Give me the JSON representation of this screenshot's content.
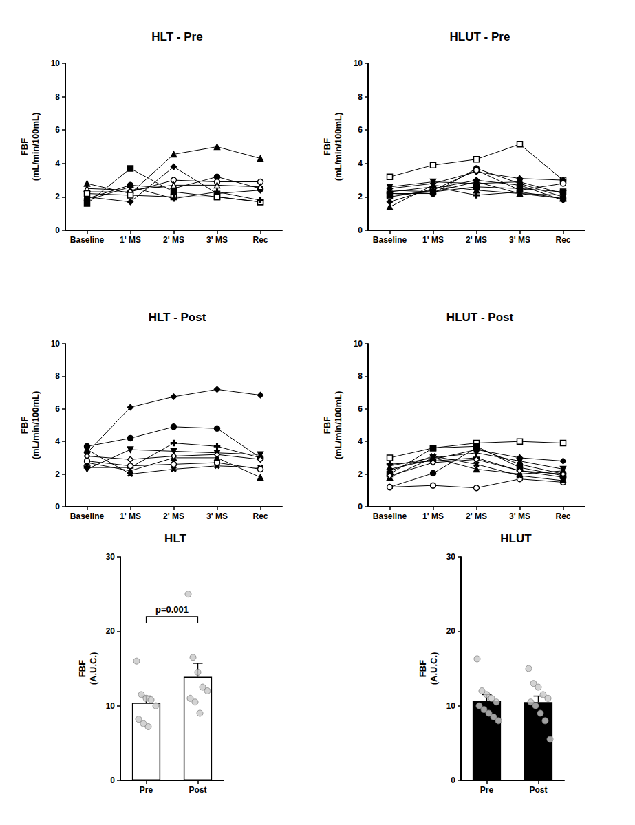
{
  "chart_data": [
    {
      "type": "line",
      "title": "HLT - Pre",
      "y_label": "FBF\n(mL/min/100mL)",
      "categories": [
        "Baseline",
        "1' MS",
        "2' MS",
        "3' MS",
        "Rec"
      ],
      "ylim": [
        0,
        10
      ],
      "yticks": [
        0,
        2,
        4,
        6,
        8,
        10
      ],
      "grid": false,
      "series": [
        {
          "color": "#000000",
          "marker": "triangle",
          "values": [
            2.8,
            2.2,
            4.55,
            5.0,
            4.3
          ]
        },
        {
          "color": "#000000",
          "marker": "square",
          "values": [
            1.6,
            3.7,
            2.3,
            2.0,
            1.7
          ]
        },
        {
          "color": "#000000",
          "marker": "circle",
          "values": [
            1.9,
            2.7,
            2.5,
            3.2,
            2.5
          ]
        },
        {
          "color": "#000000",
          "marker": "diamond",
          "values": [
            2.0,
            1.7,
            3.8,
            2.2,
            2.4
          ]
        },
        {
          "color": "#000000",
          "marker": "open_circle",
          "values": [
            2.3,
            2.3,
            3.0,
            2.9,
            2.9
          ]
        },
        {
          "color": "#000000",
          "marker": "open_triangle",
          "values": [
            2.5,
            2.4,
            2.7,
            2.7,
            2.6
          ]
        },
        {
          "color": "#000000",
          "marker": "open_square",
          "values": [
            2.2,
            2.1,
            2.0,
            2.0,
            1.7
          ]
        },
        {
          "color": "#000000",
          "marker": "plus",
          "values": [
            1.8,
            2.6,
            1.9,
            2.3,
            1.8
          ]
        }
      ]
    },
    {
      "type": "line",
      "title": "HLUT - Pre",
      "y_label": "FBF\n(mL/min/100mL)",
      "categories": [
        "Baseline",
        "1' MS",
        "2' MS",
        "3' MS",
        "Rec"
      ],
      "ylim": [
        0,
        10
      ],
      "yticks": [
        0,
        2,
        4,
        6,
        8,
        10
      ],
      "grid": false,
      "series": [
        {
          "color": "#000000",
          "marker": "open_square",
          "values": [
            3.2,
            3.9,
            4.25,
            5.15,
            3.0
          ]
        },
        {
          "color": "#000000",
          "marker": "diamond",
          "values": [
            2.5,
            2.8,
            3.5,
            3.1,
            3.0
          ]
        },
        {
          "color": "#000000",
          "marker": "circle",
          "values": [
            2.2,
            2.2,
            3.7,
            2.8,
            2.0
          ]
        },
        {
          "color": "#000000",
          "marker": "triangle_down",
          "values": [
            2.6,
            2.9,
            2.8,
            2.9,
            2.2
          ]
        },
        {
          "color": "#000000",
          "marker": "triangle",
          "values": [
            1.4,
            2.7,
            2.4,
            2.2,
            1.9
          ]
        },
        {
          "color": "#000000",
          "marker": "diamond",
          "values": [
            1.7,
            2.5,
            3.0,
            2.7,
            1.8
          ]
        },
        {
          "color": "#000000",
          "marker": "open_circle",
          "values": [
            2.0,
            2.4,
            3.6,
            2.4,
            2.8
          ]
        },
        {
          "color": "#000000",
          "marker": "plus",
          "values": [
            2.3,
            2.6,
            2.1,
            2.3,
            1.9
          ]
        },
        {
          "color": "#000000",
          "marker": "square",
          "values": [
            2.1,
            2.3,
            2.6,
            2.5,
            2.3
          ]
        },
        {
          "color": "#000000",
          "marker": "x",
          "values": [
            2.4,
            2.3,
            2.9,
            2.2,
            2.1
          ]
        }
      ]
    },
    {
      "type": "line",
      "title": "HLT - Post",
      "y_label": "FBF\n(mL/min/100mL)",
      "categories": [
        "Baseline",
        "1' MS",
        "2' MS",
        "3' MS",
        "Rec"
      ],
      "ylim": [
        0,
        10
      ],
      "yticks": [
        0,
        2,
        4,
        6,
        8,
        10
      ],
      "grid": false,
      "series": [
        {
          "color": "#000000",
          "marker": "diamond",
          "values": [
            3.3,
            6.1,
            6.75,
            7.2,
            6.85
          ]
        },
        {
          "color": "#000000",
          "marker": "circle",
          "values": [
            3.7,
            4.2,
            4.9,
            4.8,
            3.0
          ]
        },
        {
          "color": "#000000",
          "marker": "triangle_down",
          "values": [
            2.3,
            3.5,
            3.4,
            3.3,
            3.2
          ]
        },
        {
          "color": "#000000",
          "marker": "plus",
          "values": [
            2.4,
            2.4,
            3.9,
            3.7,
            3.0
          ]
        },
        {
          "color": "#000000",
          "marker": "triangle",
          "values": [
            2.7,
            2.2,
            3.0,
            3.0,
            1.8
          ]
        },
        {
          "color": "#000000",
          "marker": "x",
          "values": [
            3.5,
            2.0,
            2.3,
            2.5,
            2.4
          ]
        },
        {
          "color": "#000000",
          "marker": "open_circle",
          "values": [
            2.8,
            2.5,
            2.6,
            2.7,
            2.3
          ]
        },
        {
          "color": "#000000",
          "marker": "open_diamond",
          "values": [
            3.1,
            2.9,
            3.1,
            3.2,
            2.9
          ]
        }
      ]
    },
    {
      "type": "line",
      "title": "HLUT - Post",
      "y_label": "FBF\n(mL/min/100mL)",
      "categories": [
        "Baseline",
        "1' MS",
        "2' MS",
        "3' MS",
        "Rec"
      ],
      "ylim": [
        0,
        10
      ],
      "yticks": [
        0,
        2,
        4,
        6,
        8,
        10
      ],
      "grid": false,
      "series": [
        {
          "color": "#000000",
          "marker": "open_square",
          "values": [
            3.0,
            3.6,
            3.9,
            4.0,
            3.9
          ]
        },
        {
          "color": "#000000",
          "marker": "diamond",
          "values": [
            2.3,
            2.9,
            3.5,
            3.0,
            2.8
          ]
        },
        {
          "color": "#000000",
          "marker": "circle",
          "values": [
            1.2,
            2.05,
            3.6,
            2.6,
            2.0
          ]
        },
        {
          "color": "#000000",
          "marker": "open_circle",
          "values": [
            1.2,
            1.3,
            1.15,
            1.7,
            1.5
          ]
        },
        {
          "color": "#000000",
          "marker": "triangle",
          "values": [
            1.8,
            3.0,
            2.3,
            2.0,
            2.2
          ]
        },
        {
          "color": "#000000",
          "marker": "triangle_down",
          "values": [
            2.5,
            3.0,
            3.3,
            2.8,
            2.3
          ]
        },
        {
          "color": "#000000",
          "marker": "square",
          "values": [
            2.0,
            3.6,
            3.7,
            2.4,
            1.9
          ]
        },
        {
          "color": "#000000",
          "marker": "plus",
          "values": [
            2.6,
            2.8,
            3.0,
            2.2,
            1.8
          ]
        },
        {
          "color": "#000000",
          "marker": "open_diamond",
          "values": [
            1.9,
            2.7,
            2.9,
            2.2,
            2.0
          ]
        },
        {
          "color": "#000000",
          "marker": "x",
          "values": [
            2.2,
            3.1,
            2.6,
            1.9,
            1.6
          ]
        }
      ]
    },
    {
      "type": "bar",
      "title": "HLT",
      "y_label": "FBF\n(A.U.C.)",
      "categories": [
        "Pre",
        "Post"
      ],
      "ylim": [
        0,
        30
      ],
      "yticks": [
        0,
        10,
        20,
        30
      ],
      "grid": false,
      "series": [
        {
          "type": "bar",
          "color": "#ffffff",
          "values": [
            10.4,
            13.9
          ],
          "errors": [
            0.9,
            1.8
          ]
        },
        {
          "type": "scatter",
          "color": "#c8c8c8",
          "values": [
            [
              16.0,
              11.5,
              11.0,
              10.8,
              10.0,
              8.2,
              7.6,
              7.2
            ],
            [
              25.0,
              16.5,
              14.5,
              12.5,
              12.0,
              11.0,
              10.5,
              9.0
            ]
          ]
        }
      ],
      "annotations": [
        {
          "text": "p=0.001",
          "from": "Pre",
          "to": "Post"
        }
      ]
    },
    {
      "type": "bar",
      "title": "HLUT",
      "y_label": "FBF\n(A.U.C.)",
      "categories": [
        "Pre",
        "Post"
      ],
      "ylim": [
        0,
        30
      ],
      "yticks": [
        0,
        10,
        20,
        30
      ],
      "grid": false,
      "series": [
        {
          "type": "bar",
          "color": "#000000",
          "values": [
            10.7,
            10.5
          ],
          "errors": [
            0.8,
            0.8
          ]
        },
        {
          "type": "scatter",
          "color": "#c8c8c8",
          "values": [
            [
              16.3,
              12.0,
              11.5,
              11.0,
              10.5,
              10.0,
              9.5,
              9.0,
              8.5,
              8.0
            ],
            [
              15.0,
              13.0,
              12.5,
              11.5,
              11.0,
              10.5,
              10.0,
              9.0,
              8.0,
              5.5
            ]
          ]
        }
      ]
    }
  ]
}
